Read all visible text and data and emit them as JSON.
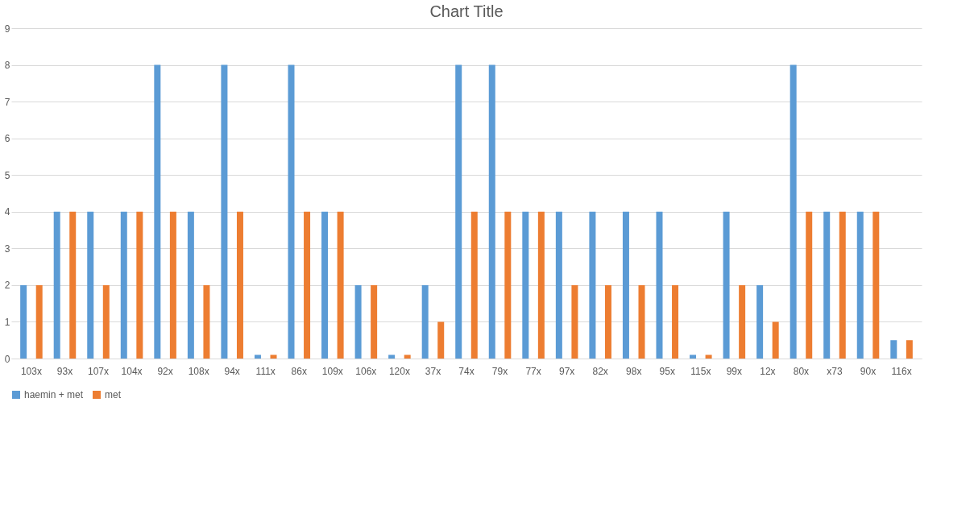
{
  "chart_data": {
    "type": "bar",
    "title": "Chart Title",
    "categories": [
      "103x",
      "93x",
      "107x",
      "104x",
      "92x",
      "108x",
      "94x",
      "111x",
      "86x",
      "109x",
      "106x",
      "120x",
      "37x",
      "74x",
      "79x",
      "77x",
      "97x",
      "82x",
      "98x",
      "95x",
      "115x",
      "99x",
      "12x",
      "80x",
      "x73",
      "90x",
      "116x"
    ],
    "series": [
      {
        "name": "haemin + met",
        "color": "#5b9bd5",
        "values": [
          2,
          4,
          4,
          4,
          8,
          4,
          8,
          0.1,
          8,
          4,
          2,
          0.1,
          2,
          8,
          8,
          4,
          4,
          4,
          4,
          4,
          0.1,
          4,
          2,
          8,
          4,
          4,
          0.5
        ]
      },
      {
        "name": "met",
        "color": "#ed7d31",
        "values": [
          2,
          4,
          2,
          4,
          4,
          2,
          4,
          0.1,
          4,
          4,
          2,
          0.1,
          1,
          4,
          4,
          4,
          2,
          2,
          2,
          2,
          0.1,
          2,
          1,
          4,
          4,
          4,
          0.5
        ]
      }
    ],
    "ylim": [
      0,
      9
    ],
    "yticks": [
      0,
      1,
      2,
      3,
      4,
      5,
      6,
      7,
      8,
      9
    ],
    "grid": "y",
    "legend": "bottom"
  }
}
